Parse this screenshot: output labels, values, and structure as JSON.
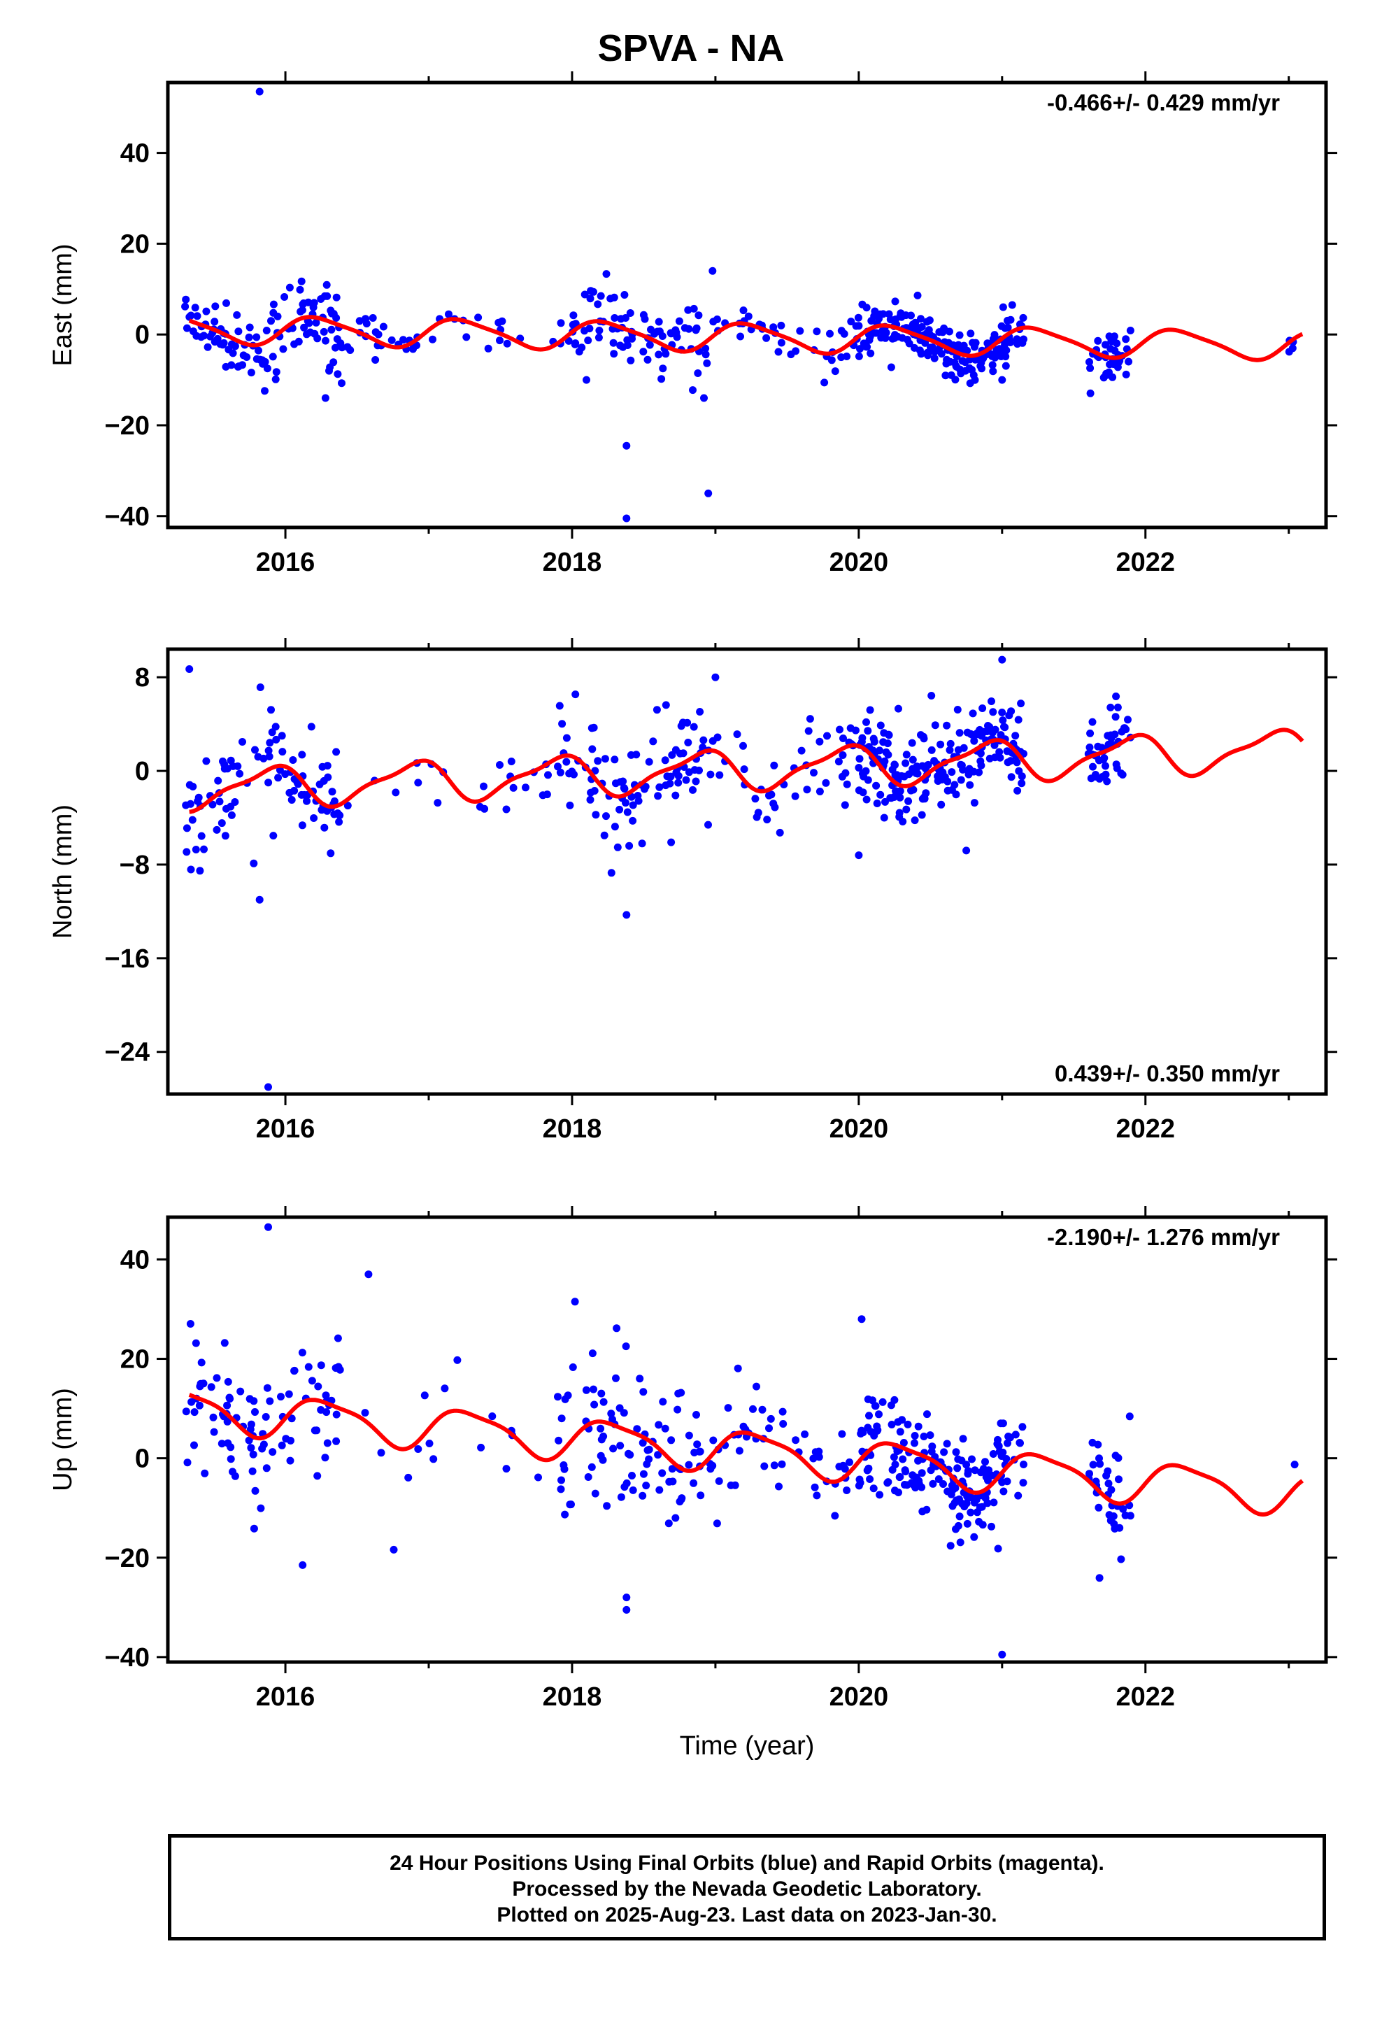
{
  "title": "SPVA - NA",
  "colors": {
    "points": "#0000ff",
    "fit": "#ff0000",
    "frame": "#000000"
  },
  "footer": {
    "line1": "24 Hour Positions Using Final Orbits (blue) and Rapid Orbits (magenta).",
    "line2": "Processed by the Nevada Geodetic Laboratory.",
    "line3": "Plotted on 2025-Aug-23. Last data on 2023-Jan-30."
  },
  "chart_data": [
    {
      "type": "scatter",
      "ylabel": "East (mm)",
      "xlabel": "",
      "annotation": "-0.466+/- 0.429 mm/yr",
      "annotation_position": "top-right",
      "xlim": [
        2015.18,
        2023.26
      ],
      "ylim": [
        -42.5,
        55.5
      ],
      "xticks": [
        2016,
        2018,
        2020,
        2022
      ],
      "yticks": [
        -40,
        -20,
        0,
        20,
        40
      ],
      "model": {
        "offset": 1.2,
        "trend": -0.466,
        "ref_year": 2015.3,
        "amp1": 3.0,
        "phase1": 0.1,
        "amp2": 0.6,
        "phase2": 0.5
      },
      "segments": [
        [
          2015.3,
          2016.4,
          4,
          0.25
        ],
        [
          2016.4,
          2017.9,
          2.5,
          0.05
        ],
        [
          2017.9,
          2018.9,
          4,
          0.25
        ],
        [
          2018.9,
          2020.0,
          3,
          0.12
        ],
        [
          2020.0,
          2021.15,
          3,
          0.45
        ],
        [
          2021.6,
          2021.9,
          3,
          0.4
        ],
        [
          2023.0,
          2023.1,
          1,
          0.03
        ]
      ],
      "outliers": [
        [
          2015.82,
          53.5
        ],
        [
          2016.28,
          -14.0
        ],
        [
          2018.1,
          -10.0
        ],
        [
          2018.38,
          -24.5
        ],
        [
          2018.38,
          -40.5
        ],
        [
          2018.92,
          -14.0
        ],
        [
          2018.95,
          -35.0
        ],
        [
          2018.98,
          14.0
        ],
        [
          2021.0,
          -10.0
        ]
      ]
    },
    {
      "type": "scatter",
      "ylabel": "North (mm)",
      "xlabel": "",
      "annotation": "0.439+/- 0.350 mm/yr",
      "annotation_position": "bottom-right",
      "xlim": [
        2015.18,
        2023.26
      ],
      "ylim": [
        -27.6,
        10.4
      ],
      "xticks": [
        2016,
        2018,
        2020,
        2022
      ],
      "yticks": [
        -24,
        -16,
        -8,
        0,
        8
      ],
      "model": {
        "offset": -1.6,
        "trend": 0.439,
        "ref_year": 2015.3,
        "amp1": 1.6,
        "phase1": 2.3,
        "amp2": 0.5,
        "phase2": 1.2
      },
      "segments": [
        [
          2015.3,
          2016.4,
          2.5,
          0.25
        ],
        [
          2016.4,
          2017.9,
          1.8,
          0.05
        ],
        [
          2017.9,
          2018.9,
          2.5,
          0.25
        ],
        [
          2018.9,
          2020.0,
          2.2,
          0.12
        ],
        [
          2020.0,
          2021.15,
          2.0,
          0.45
        ],
        [
          2021.6,
          2021.9,
          1.8,
          0.4
        ],
        [
          2023.0,
          2023.1,
          1,
          0.03
        ]
      ],
      "outliers": [
        [
          2015.33,
          8.7
        ],
        [
          2015.82,
          -11.0
        ],
        [
          2015.88,
          -27.0
        ],
        [
          2018.38,
          -12.3
        ],
        [
          2019.0,
          8.0
        ],
        [
          2021.0,
          9.5
        ],
        [
          2020.0,
          -7.2
        ],
        [
          2020.75,
          -6.8
        ]
      ]
    },
    {
      "type": "scatter",
      "ylabel": "Up (mm)",
      "xlabel": "Time (year)",
      "annotation": "-2.190+/- 1.276 mm/yr",
      "annotation_position": "top-right",
      "xlim": [
        2015.18,
        2023.26
      ],
      "ylim": [
        -41.0,
        48.5
      ],
      "xticks": [
        2016,
        2018,
        2020,
        2022
      ],
      "yticks": [
        -40,
        -20,
        0,
        20,
        40
      ],
      "model": {
        "offset": 10.0,
        "trend": -2.19,
        "ref_year": 2015.3,
        "amp1": 4.0,
        "phase1": -0.2,
        "amp2": 1.0,
        "phase2": 0.4
      },
      "segments": [
        [
          2015.3,
          2016.4,
          7,
          0.25
        ],
        [
          2016.4,
          2017.9,
          6,
          0.05
        ],
        [
          2017.9,
          2018.9,
          8,
          0.25
        ],
        [
          2018.9,
          2020.0,
          6,
          0.12
        ],
        [
          2020.0,
          2021.15,
          5,
          0.45
        ],
        [
          2021.6,
          2021.9,
          5,
          0.4
        ],
        [
          2023.0,
          2023.1,
          3,
          0.03
        ]
      ],
      "outliers": [
        [
          2015.88,
          46.5
        ],
        [
          2016.12,
          -21.5
        ],
        [
          2016.58,
          37.0
        ],
        [
          2018.38,
          -30.5
        ],
        [
          2018.38,
          -28.0
        ],
        [
          2021.0,
          -39.5
        ],
        [
          2020.02,
          28.0
        ],
        [
          2018.02,
          31.5
        ]
      ]
    }
  ]
}
